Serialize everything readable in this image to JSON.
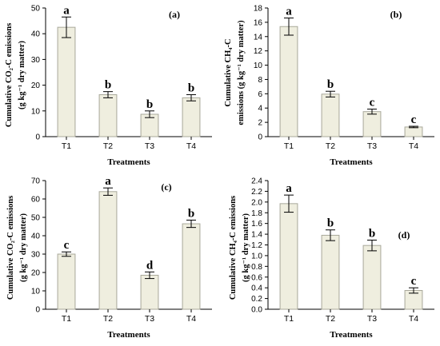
{
  "chart_data": [
    {
      "type": "bar",
      "panel_label": "(a)",
      "ylabel_line1": "Cumulative CO₂-C emissions",
      "ylabel_line2": "(g kg⁻¹ dry matter)",
      "xlabel": "Treatments",
      "categories": [
        "T1",
        "T2",
        "T3",
        "T4"
      ],
      "values": [
        42.5,
        16.3,
        8.7,
        15.1
      ],
      "errors": [
        4.0,
        1.2,
        1.3,
        1.2
      ],
      "letters": [
        "a",
        "b",
        "b",
        "b"
      ],
      "ylim": [
        0,
        50
      ],
      "yticks": [
        0,
        10,
        20,
        30,
        40,
        50
      ],
      "tick_decimals": 0
    },
    {
      "type": "bar",
      "panel_label": "(b)",
      "ylabel_line1": "Cumulative CH₄-C",
      "ylabel_line2": "emissions (g kg⁻¹ dry matter)",
      "xlabel": "Treatments",
      "categories": [
        "T1",
        "T2",
        "T3",
        "T4"
      ],
      "values": [
        15.4,
        5.95,
        3.5,
        1.35
      ],
      "errors": [
        1.2,
        0.4,
        0.35,
        0.1
      ],
      "letters": [
        "a",
        "b",
        "c",
        "c"
      ],
      "ylim": [
        0,
        18
      ],
      "yticks": [
        0,
        2,
        4,
        6,
        8,
        10,
        12,
        14,
        16,
        18
      ],
      "tick_decimals": 0
    },
    {
      "type": "bar",
      "panel_label": "(c)",
      "ylabel_line1": "Cumulative CO₂-C emissions",
      "ylabel_line2": "(g kg⁻¹ dry matter)",
      "xlabel": "Treatments",
      "categories": [
        "T1",
        "T2",
        "T3",
        "T4"
      ],
      "values": [
        30.0,
        64.0,
        18.5,
        46.5
      ],
      "errors": [
        1.2,
        2.0,
        1.8,
        2.0
      ],
      "letters": [
        "c",
        "a",
        "d",
        "b"
      ],
      "ylim": [
        0,
        70
      ],
      "yticks": [
        0,
        10,
        20,
        30,
        40,
        50,
        60,
        70
      ],
      "tick_decimals": 0
    },
    {
      "type": "bar",
      "panel_label": "(d)",
      "ylabel_line1": "Cumulative CH₄-C emissions",
      "ylabel_line2": "(g kg⁻¹ dry matter)",
      "xlabel": "Treatments",
      "categories": [
        "T1",
        "T2",
        "T3",
        "T4"
      ],
      "values": [
        1.97,
        1.38,
        1.19,
        0.35
      ],
      "errors": [
        0.16,
        0.1,
        0.1,
        0.05
      ],
      "letters": [
        "a",
        "b",
        "b",
        "c"
      ],
      "ylim": [
        0,
        2.4
      ],
      "yticks": [
        0,
        0.2,
        0.4,
        0.6,
        0.8,
        1.0,
        1.2,
        1.4,
        1.6,
        1.8,
        2.0,
        2.2,
        2.4
      ],
      "tick_decimals": 1
    }
  ],
  "colors": {
    "bar_fill": "#efeedf",
    "bar_stroke": "#a8a89a",
    "axis": "#000000"
  }
}
